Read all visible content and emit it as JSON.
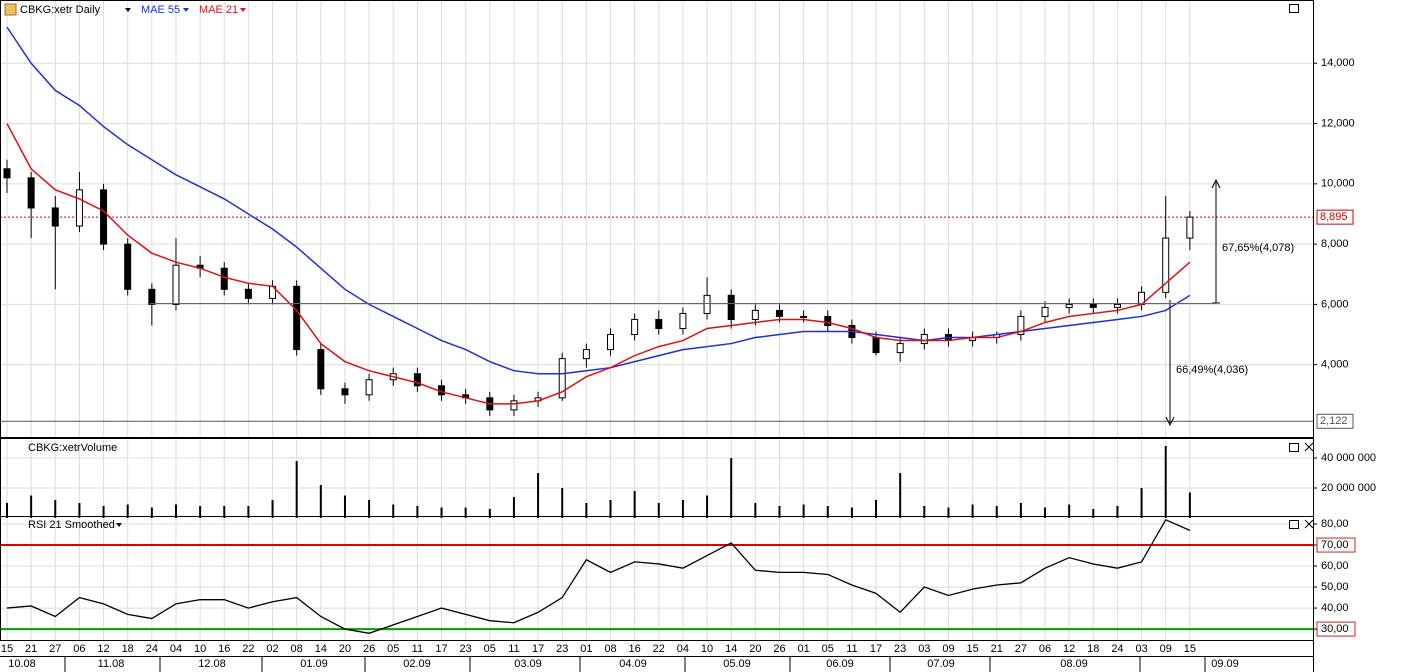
{
  "chart_data": [
    {
      "type": "candlestick",
      "title": "CBKG:xetr Daily",
      "categories": [
        "15",
        "21",
        "27",
        "06",
        "12",
        "18",
        "24",
        "04",
        "10",
        "16",
        "22",
        "02",
        "08",
        "14",
        "20",
        "26",
        "05",
        "11",
        "17",
        "23",
        "05",
        "11",
        "17",
        "23",
        "01",
        "08",
        "16",
        "22",
        "04",
        "10",
        "14",
        "20",
        "26",
        "01",
        "05",
        "11",
        "17",
        "23",
        "03",
        "09",
        "15",
        "21",
        "27",
        "06",
        "12",
        "18",
        "24",
        "03",
        "09",
        "15"
      ],
      "months": [
        "10.08",
        "11.08",
        "12.08",
        "01.09",
        "02.09",
        "03.09",
        "04.09",
        "05.09",
        "06.09",
        "07.09",
        "08.09",
        "09.09"
      ],
      "open": [
        10500,
        10200,
        9200,
        8600,
        9800,
        8000,
        6500,
        6000,
        7300,
        7200,
        6500,
        6200,
        6600,
        4500,
        3200,
        3000,
        3500,
        3700,
        3300,
        3000,
        2900,
        2500,
        2800,
        2900,
        4200,
        4500,
        5000,
        5500,
        5200,
        5700,
        6300,
        5500,
        5800,
        5600,
        5600,
        5300,
        4900,
        4400,
        4700,
        5000,
        4800,
        4900,
        5000,
        5600,
        5900,
        6000,
        5900,
        6000,
        6400,
        8200
      ],
      "high": [
        10800,
        10400,
        9600,
        10400,
        10000,
        8200,
        6700,
        8200,
        7600,
        7400,
        6700,
        6800,
        6800,
        4700,
        3400,
        3700,
        3900,
        3900,
        3500,
        3200,
        3100,
        3000,
        3100,
        4400,
        4700,
        5200,
        5700,
        5800,
        5900,
        6900,
        6500,
        6000,
        6000,
        5800,
        5800,
        5500,
        5100,
        4900,
        5200,
        5200,
        5100,
        5100,
        5800,
        6100,
        6200,
        6200,
        6200,
        6600,
        9600,
        9100
      ],
      "low": [
        9700,
        8200,
        6500,
        8400,
        7800,
        6300,
        5300,
        5800,
        6900,
        6300,
        6000,
        6000,
        4300,
        3000,
        2700,
        2800,
        3300,
        3100,
        2800,
        2700,
        2300,
        2300,
        2600,
        2800,
        3900,
        4300,
        4800,
        5000,
        5000,
        5500,
        5200,
        5300,
        5400,
        5400,
        5100,
        4700,
        4300,
        4100,
        4500,
        4600,
        4600,
        4700,
        4800,
        5400,
        5700,
        5700,
        5700,
        5800,
        6200,
        7800
      ],
      "close": [
        10200,
        9200,
        8600,
        9800,
        8000,
        6500,
        6000,
        7300,
        7200,
        6500,
        6200,
        6600,
        4500,
        3200,
        3000,
        3500,
        3700,
        3300,
        3000,
        2900,
        2500,
        2800,
        2900,
        4200,
        4500,
        5000,
        5500,
        5200,
        5700,
        6300,
        5500,
        5800,
        5600,
        5600,
        5300,
        4900,
        4400,
        4700,
        5000,
        4800,
        4900,
        5000,
        5600,
        5900,
        6000,
        5900,
        6000,
        6400,
        8200,
        8895
      ],
      "series": [
        {
          "name": "MAE 55",
          "color": "#1f2fdc",
          "values": [
            15200,
            14000,
            13100,
            12600,
            11900,
            11300,
            10800,
            10300,
            9900,
            9500,
            9000,
            8500,
            7900,
            7200,
            6500,
            6000,
            5600,
            5200,
            4800,
            4500,
            4100,
            3800,
            3700,
            3700,
            3800,
            3900,
            4100,
            4300,
            4500,
            4600,
            4700,
            4900,
            5000,
            5100,
            5100,
            5100,
            5000,
            4900,
            4800,
            4900,
            4900,
            5000,
            5100,
            5200,
            5300,
            5400,
            5500,
            5600,
            5800,
            6300
          ]
        },
        {
          "name": "MAE 21",
          "color": "#e01010",
          "values": [
            12000,
            10500,
            9800,
            9500,
            9100,
            8300,
            7700,
            7400,
            7200,
            6900,
            6700,
            6600,
            5800,
            4700,
            4100,
            3800,
            3600,
            3400,
            3100,
            2900,
            2700,
            2700,
            2800,
            3100,
            3600,
            3900,
            4300,
            4600,
            4800,
            5200,
            5300,
            5400,
            5500,
            5500,
            5400,
            5200,
            4900,
            4800,
            4800,
            4800,
            4900,
            4900,
            5100,
            5400,
            5600,
            5700,
            5800,
            6000,
            6700,
            7400
          ]
        }
      ],
      "ylim": [
        1600,
        16100
      ],
      "yticks": [
        {
          "value": 4000,
          "label": "4,000"
        },
        {
          "value": 6000,
          "label": "6,000"
        },
        {
          "value": 8000,
          "label": "8,000"
        },
        {
          "value": 10000,
          "label": "10,000"
        },
        {
          "value": 12000,
          "label": "12,000"
        },
        {
          "value": 14000,
          "label": "14,000"
        }
      ],
      "reference_lines": [
        {
          "value": 8895,
          "label": "8,895",
          "color": "#cc0000"
        },
        {
          "value": 2122,
          "label": "2,122",
          "color": "#555555"
        }
      ],
      "annotations": [
        "67,65%(4,078)",
        "66,49%(4,036)"
      ],
      "grid": true
    },
    {
      "type": "bar",
      "title": "CBKG:xetrVolume",
      "color": "#000000",
      "values": [
        10000000,
        15000000,
        12000000,
        10000000,
        8000000,
        9000000,
        7000000,
        9000000,
        8000000,
        8000000,
        8000000,
        12000000,
        38000000,
        22000000,
        15000000,
        12000000,
        9000000,
        8000000,
        7000000,
        7000000,
        6000000,
        14000000,
        30000000,
        20000000,
        10000000,
        12000000,
        18000000,
        10000000,
        12000000,
        15000000,
        40000000,
        10000000,
        8000000,
        9000000,
        8000000,
        7000000,
        12000000,
        30000000,
        8000000,
        7000000,
        9000000,
        8000000,
        10000000,
        7000000,
        9000000,
        6000000,
        8000000,
        20000000,
        48000000,
        17000000
      ],
      "ylim": [
        0,
        52000000
      ],
      "yticks": [
        {
          "value": 20000000,
          "label": "20 000 000"
        },
        {
          "value": 40000000,
          "label": "40 000 000"
        }
      ],
      "grid": true
    },
    {
      "type": "line",
      "title": "RSI 21 Smoothed",
      "color": "#000000",
      "values": [
        40,
        41,
        36,
        45,
        42,
        37,
        35,
        42,
        44,
        44,
        40,
        43,
        45,
        36,
        30,
        28,
        32,
        36,
        40,
        37,
        34,
        33,
        38,
        45,
        63,
        57,
        62,
        61,
        59,
        65,
        71,
        58,
        57,
        57,
        56,
        51,
        47,
        38,
        50,
        46,
        49,
        51,
        52,
        59,
        64,
        61,
        59,
        62,
        82,
        77
      ],
      "ylim": [
        24.8,
        82.4
      ],
      "yticks": [
        {
          "value": 30,
          "label": "30,00"
        },
        {
          "value": 40,
          "label": "40,00"
        },
        {
          "value": 50,
          "label": "50,00"
        },
        {
          "value": 60,
          "label": "60,00"
        },
        {
          "value": 70,
          "label": "70,00"
        },
        {
          "value": 80,
          "label": "80,00"
        }
      ],
      "levels": [
        {
          "value": 70,
          "color": "#e00000"
        },
        {
          "value": 30,
          "color": "#00a000"
        }
      ],
      "grid": true
    }
  ]
}
